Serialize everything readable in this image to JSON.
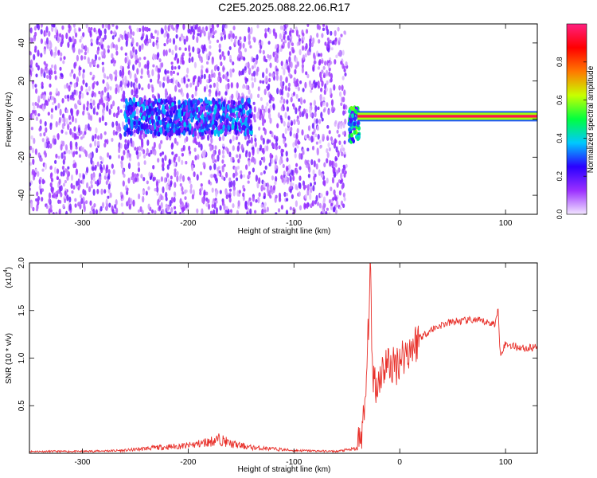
{
  "title": "C2E5.2025.088.22.06.R17",
  "chart_data": [
    {
      "type": "heatmap",
      "xlabel": "Height of straight line (km)",
      "ylabel": "Frequency (Hz)",
      "xlim": [
        -350,
        130
      ],
      "ylim": [
        -50,
        50
      ],
      "xticks": [
        -300,
        -200,
        -100,
        0,
        100
      ],
      "yticks": [
        -40,
        -20,
        0,
        20,
        40
      ],
      "xtick_labels": [
        "-300",
        "-200",
        "-100",
        "0",
        "100"
      ],
      "ytick_labels": [
        "-40",
        "-20",
        "0",
        "20",
        "40"
      ],
      "colorbar": {
        "label": "Normalized spectral amplitude",
        "range": [
          0,
          1
        ],
        "ticks": [
          0.0,
          0.2,
          0.4,
          0.6,
          0.8
        ],
        "tick_labels": [
          "0.0",
          "0.2",
          "0.4",
          "0.6",
          "0.8"
        ],
        "colormap": [
          "#f2e6ff",
          "#9b30ff",
          "#2a00ff",
          "#00c8ff",
          "#00ff40",
          "#c8ff00",
          "#ff7800",
          "#ff0000",
          "#ff2080"
        ]
      },
      "features": [
        {
          "x_range": [
            -350,
            -50
          ],
          "freq_range": [
            -50,
            50
          ],
          "amplitude": 0.1
        },
        {
          "x_range": [
            -260,
            -140
          ],
          "freq_range": [
            -8,
            10
          ],
          "amplitude": 0.2
        },
        {
          "x_range": [
            -48,
            -38
          ],
          "freq_range": [
            -12,
            6
          ],
          "amplitude": 0.35
        },
        {
          "x_range": [
            -40,
            130
          ],
          "freq_range": [
            0,
            3
          ],
          "amplitude": 0.95
        }
      ]
    },
    {
      "type": "line",
      "xlabel": "Height of straight line (km)",
      "ylabel": "SNR (10 * v/v)",
      "y_multiplier": "(x10",
      "y_multiplier_exp": "4",
      "xlim": [
        -350,
        130
      ],
      "ylim": [
        0,
        2.0
      ],
      "xticks": [
        -300,
        -200,
        -100,
        0,
        100
      ],
      "yticks": [
        0.5,
        1.0,
        1.5,
        2.0
      ],
      "xtick_labels": [
        "-300",
        "-200",
        "-100",
        "0",
        "100"
      ],
      "ytick_labels": [
        "0.5",
        "1.0",
        "1.5",
        "2.0"
      ],
      "series": [
        {
          "color": "#e8302a",
          "x": [
            -350,
            -300,
            -260,
            -230,
            -200,
            -180,
            -170,
            -160,
            -140,
            -100,
            -60,
            -40,
            -33,
            -30,
            -28,
            -26,
            -22,
            -18,
            -12,
            -5,
            0,
            10,
            20,
            30,
            40,
            50,
            60,
            70,
            80,
            90,
            93,
            95,
            100,
            110,
            120,
            130
          ],
          "y": [
            0.02,
            0.02,
            0.03,
            0.06,
            0.08,
            0.12,
            0.15,
            0.1,
            0.06,
            0.03,
            0.02,
            0.05,
            0.4,
            1.2,
            2.0,
            0.9,
            0.7,
            0.85,
            0.95,
            0.9,
            1.0,
            1.1,
            1.22,
            1.3,
            1.35,
            1.38,
            1.39,
            1.4,
            1.38,
            1.36,
            1.5,
            1.05,
            1.15,
            1.12,
            1.1,
            1.12
          ]
        }
      ]
    }
  ]
}
